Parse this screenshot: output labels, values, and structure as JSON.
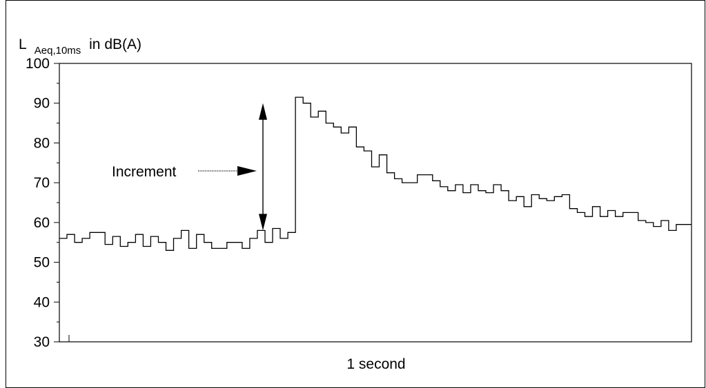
{
  "chart_data": {
    "type": "line",
    "step": true,
    "ylabel": {
      "main": "L",
      "subscript": "Aeq,10ms",
      "suffix": "in dB(A)"
    },
    "xlabel": "1 second",
    "ylim": [
      30,
      100
    ],
    "yticks": [
      30,
      40,
      50,
      60,
      70,
      80,
      90,
      100
    ],
    "grid": false,
    "series": [
      {
        "values": [
          56,
          57,
          55,
          56,
          57.5,
          57.5,
          54.5,
          56.5,
          54,
          55,
          57,
          54,
          56.5,
          55,
          53,
          56,
          58,
          53.5,
          57,
          55,
          53.5,
          53.5,
          55,
          55,
          53.5,
          56,
          58,
          55,
          58.5,
          56,
          57.5,
          91.5,
          90,
          86.5,
          88,
          85,
          84,
          82.5,
          84,
          79,
          78,
          74,
          77,
          72.5,
          71,
          70,
          70,
          72,
          72,
          70.5,
          69,
          68,
          69.5,
          67.5,
          69.5,
          68,
          67.5,
          69.5,
          68,
          65.5,
          66.5,
          64,
          67,
          66,
          65.5,
          66.5,
          67,
          63.5,
          62.5,
          61.5,
          64,
          61.5,
          63,
          61.5,
          62.5,
          62.5,
          60.5,
          60,
          59,
          60.5,
          58,
          59.5,
          59.5
        ]
      }
    ],
    "annotations": [
      {
        "text": "Increment",
        "arrow_span": [
          58,
          90
        ]
      }
    ]
  }
}
